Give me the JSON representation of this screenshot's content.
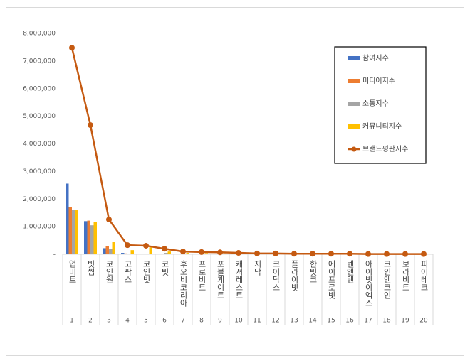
{
  "chart_data": {
    "type": "bar",
    "categories": [
      "업비트",
      "빗썸",
      "코인원",
      "고팍스",
      "코인빗",
      "코빗",
      "후오비코리아",
      "프로비트",
      "포블게이트",
      "캐셔레스트",
      "지닥",
      "코어닥스",
      "플라이빗",
      "한빗코",
      "에이프로빗",
      "텐앤텐",
      "아이빗이엑스",
      "코인엔코인",
      "보라비트",
      "피어테크"
    ],
    "ranks": [
      1,
      2,
      3,
      4,
      5,
      6,
      7,
      8,
      9,
      10,
      11,
      12,
      13,
      14,
      15,
      16,
      17,
      18,
      19,
      20
    ],
    "series": [
      {
        "name": "참여지수",
        "color": "#4472c4",
        "values": [
          2560000,
          1200000,
          220000,
          50000,
          10000,
          10000,
          20000,
          10000,
          10000,
          10000,
          5000,
          5000,
          5000,
          5000,
          5000,
          5000,
          5000,
          5000,
          5000,
          5000
        ]
      },
      {
        "name": "미디어지수",
        "color": "#ed7d31",
        "values": [
          1700000,
          1220000,
          300000,
          30000,
          20000,
          20000,
          20000,
          20000,
          15000,
          15000,
          10000,
          10000,
          10000,
          10000,
          10000,
          5000,
          5000,
          5000,
          5000,
          5000
        ]
      },
      {
        "name": "소통지수",
        "color": "#a5a5a5",
        "values": [
          1600000,
          1050000,
          200000,
          20000,
          20000,
          50000,
          10000,
          10000,
          10000,
          10000,
          5000,
          5000,
          5000,
          5000,
          5000,
          5000,
          5000,
          5000,
          5000,
          5000
        ]
      },
      {
        "name": "커뮤니티지수",
        "color": "#ffc000",
        "values": [
          1600000,
          1180000,
          450000,
          150000,
          250000,
          100000,
          50000,
          40000,
          30000,
          20000,
          15000,
          15000,
          10000,
          10000,
          10000,
          10000,
          5000,
          5000,
          5000,
          5000
        ]
      },
      {
        "name": "브랜드평판지수",
        "color": "#c55a11",
        "type": "line",
        "values": [
          7480000,
          4680000,
          1260000,
          330000,
          310000,
          200000,
          100000,
          80000,
          70000,
          50000,
          30000,
          30000,
          20000,
          20000,
          20000,
          20000,
          10000,
          10000,
          10000,
          10000
        ]
      }
    ],
    "ylim": [
      0,
      8000000
    ],
    "yticks": [
      {
        "value": 0,
        "label": "-"
      },
      {
        "value": 1000000,
        "label": "1,000,000"
      },
      {
        "value": 2000000,
        "label": "2,000,000"
      },
      {
        "value": 3000000,
        "label": "3,000,000"
      },
      {
        "value": 4000000,
        "label": "4,000,000"
      },
      {
        "value": 5000000,
        "label": "5,000,000"
      },
      {
        "value": 6000000,
        "label": "6,000,000"
      },
      {
        "value": 7000000,
        "label": "7,000,000"
      },
      {
        "value": 8000000,
        "label": "8,000,000"
      }
    ],
    "legend": "right"
  }
}
